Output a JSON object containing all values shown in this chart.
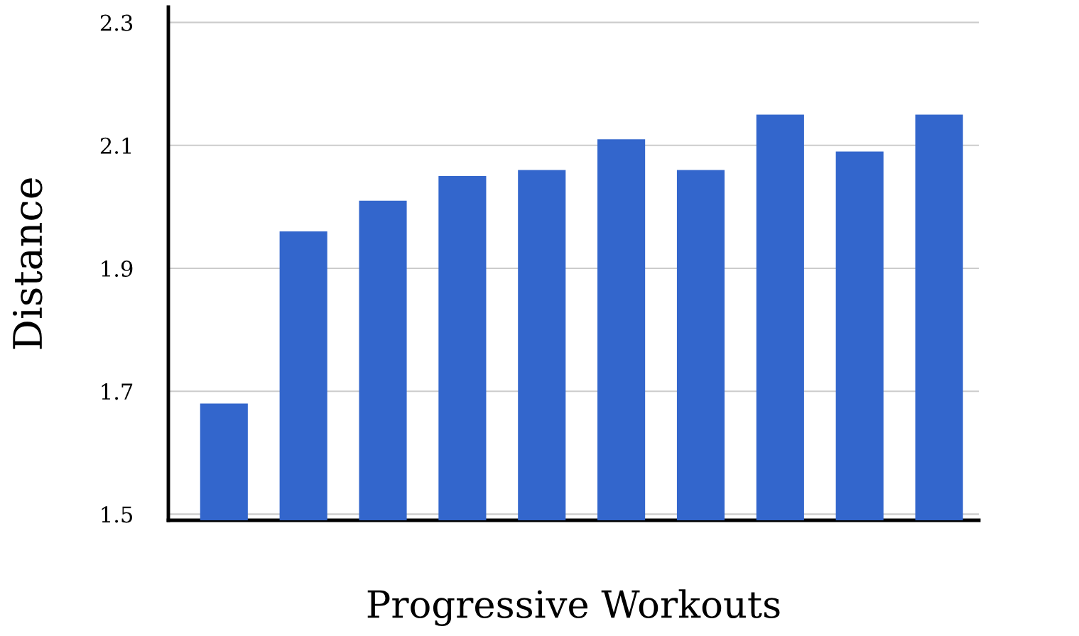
{
  "chart_data": {
    "type": "bar",
    "xlabel": "Progressive Workouts",
    "ylabel": "Distance",
    "categories": [
      null,
      null,
      null,
      null,
      null,
      null,
      null,
      null,
      null,
      null
    ],
    "values": [
      1.68,
      1.96,
      2.01,
      2.05,
      2.06,
      2.11,
      2.06,
      2.15,
      2.09,
      2.15
    ],
    "color": "#3366cc",
    "ylim": [
      1.49,
      2.325
    ],
    "yticks": [
      1.5,
      1.7,
      1.9,
      2.1,
      2.3
    ],
    "grid": "y",
    "tick_labels": "y"
  }
}
